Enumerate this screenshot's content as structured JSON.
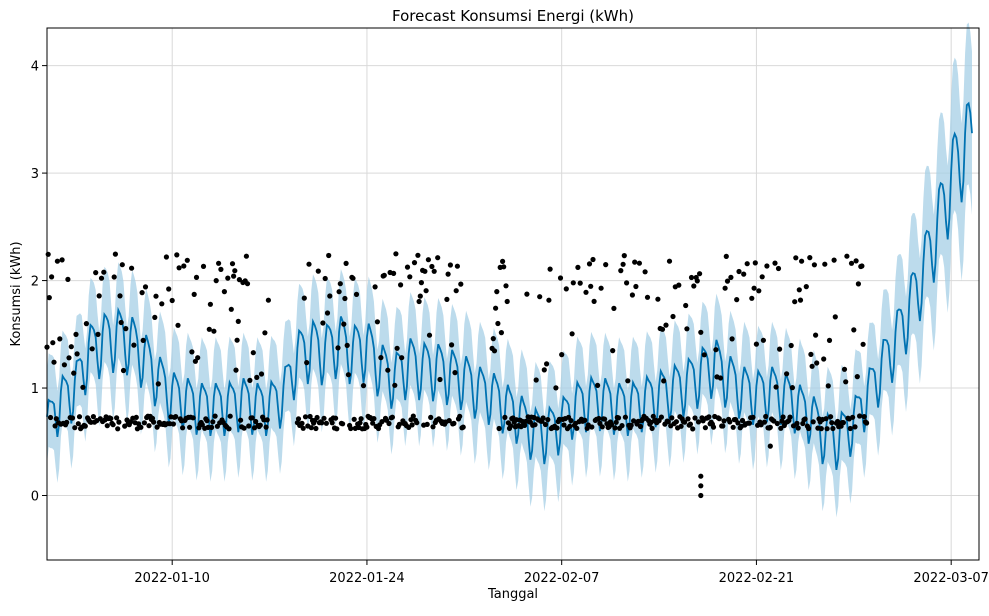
{
  "chart_data": {
    "type": "line",
    "title": "Forecast Konsumsi Energi (kWh)",
    "xlabel": "Tanggal",
    "ylabel": "Konsumsi (kWh)",
    "x_axis_type": "date",
    "xlim": [
      "2022-01-01",
      "2022-03-09"
    ],
    "ylim": [
      -0.6,
      4.35
    ],
    "x_ticks": [
      "2022-01-10",
      "2022-01-24",
      "2022-02-07",
      "2022-02-21",
      "2022-03-07"
    ],
    "y_ticks": [
      0,
      1,
      2,
      3,
      4
    ],
    "grid": true,
    "series": [
      {
        "kind": "forecast-line",
        "color": "#0072b2",
        "points": [
          [
            "2022-01-01",
            0.66
          ],
          [
            "2022-01-02",
            0.9
          ],
          [
            "2022-01-03",
            1.0
          ],
          [
            "2022-01-04",
            1.35
          ],
          [
            "2022-01-05",
            1.45
          ],
          [
            "2022-01-06",
            1.5
          ],
          [
            "2022-01-07",
            1.45
          ],
          [
            "2022-01-08",
            1.3
          ],
          [
            "2022-01-09",
            1.1
          ],
          [
            "2022-01-10",
            0.95
          ],
          [
            "2022-01-11",
            0.9
          ],
          [
            "2022-01-12",
            0.85
          ],
          [
            "2022-01-13",
            0.85
          ],
          [
            "2022-01-14",
            0.85
          ],
          [
            "2022-01-15",
            0.9
          ],
          [
            "2022-01-16",
            0.85
          ],
          [
            "2022-01-17",
            0.85
          ],
          [
            "2022-01-18",
            0.95
          ],
          [
            "2022-01-19",
            1.3
          ],
          [
            "2022-01-20",
            1.4
          ],
          [
            "2022-01-21",
            1.35
          ],
          [
            "2022-01-22",
            1.45
          ],
          [
            "2022-01-23",
            1.35
          ],
          [
            "2022-01-24",
            1.4
          ],
          [
            "2022-01-25",
            1.2
          ],
          [
            "2022-01-26",
            1.1
          ],
          [
            "2022-01-27",
            1.25
          ],
          [
            "2022-01-28",
            1.2
          ],
          [
            "2022-01-29",
            1.2
          ],
          [
            "2022-01-30",
            1.15
          ],
          [
            "2022-01-31",
            1.1
          ],
          [
            "2022-02-01",
            1.0
          ],
          [
            "2022-02-02",
            0.95
          ],
          [
            "2022-02-03",
            0.85
          ],
          [
            "2022-02-04",
            0.75
          ],
          [
            "2022-02-05",
            0.6
          ],
          [
            "2022-02-06",
            0.6
          ],
          [
            "2022-02-07",
            0.7
          ],
          [
            "2022-02-08",
            0.85
          ],
          [
            "2022-02-09",
            0.9
          ],
          [
            "2022-02-10",
            0.9
          ],
          [
            "2022-02-11",
            0.85
          ],
          [
            "2022-02-12",
            0.85
          ],
          [
            "2022-02-13",
            0.9
          ],
          [
            "2022-02-14",
            0.95
          ],
          [
            "2022-02-15",
            1.0
          ],
          [
            "2022-02-16",
            1.05
          ],
          [
            "2022-02-17",
            1.15
          ],
          [
            "2022-02-18",
            1.25
          ],
          [
            "2022-02-19",
            1.1
          ],
          [
            "2022-02-20",
            1.0
          ],
          [
            "2022-02-21",
            0.95
          ],
          [
            "2022-02-22",
            1.0
          ],
          [
            "2022-02-23",
            0.95
          ],
          [
            "2022-02-24",
            0.85
          ],
          [
            "2022-02-25",
            0.75
          ],
          [
            "2022-02-26",
            0.55
          ],
          [
            "2022-02-27",
            0.55
          ],
          [
            "2022-02-28",
            0.7
          ],
          [
            "2022-03-01",
            0.95
          ],
          [
            "2022-03-02",
            1.2
          ],
          [
            "2022-03-03",
            1.45
          ],
          [
            "2022-03-04",
            1.75
          ],
          [
            "2022-03-05",
            2.1
          ],
          [
            "2022-03-06",
            2.5
          ],
          [
            "2022-03-07",
            2.95
          ],
          [
            "2022-03-08",
            3.3
          ]
        ]
      },
      {
        "kind": "uncertainty-band",
        "color": "#a6cfe6"
      },
      {
        "kind": "observed-points",
        "color": "#000000",
        "start": "2022-01-01",
        "end": "2022-03-01",
        "baseline_kWh": 0.68,
        "high_range_kWh": [
          1.0,
          2.25
        ],
        "gaps": [
          [
            "2022-01-17",
            "2022-01-18"
          ],
          [
            "2022-01-31",
            "2022-02-01"
          ]
        ],
        "outliers": [
          [
            "2022-02-17",
            0.18
          ],
          [
            "2022-02-17",
            0.09
          ],
          [
            "2022-02-17",
            0.0
          ],
          [
            "2022-02-22",
            0.46
          ]
        ]
      }
    ]
  }
}
